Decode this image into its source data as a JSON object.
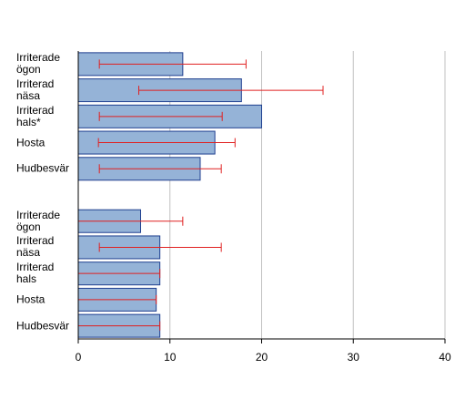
{
  "chart_data": {
    "type": "bar",
    "orientation": "horizontal",
    "categories": [
      "Irriterade ögon",
      "Irriterad näsa",
      "Irriterad hals*",
      "Hosta",
      "Hudbesvär",
      null,
      "Irriterade ögon",
      "Irriterad näsa",
      "Irriterad hals",
      "Hosta",
      "Hudbesvär"
    ],
    "series": [
      {
        "color": "#95b3d7",
        "values": [
          11.4,
          17.8,
          20.0,
          14.9,
          13.3,
          null,
          6.8,
          8.9,
          8.9,
          8.5,
          8.9
        ],
        "lower": [
          2.3,
          6.6,
          2.3,
          2.2,
          2.3,
          null,
          0,
          2.3,
          0,
          0,
          0
        ],
        "upper": [
          18.3,
          26.7,
          15.7,
          17.1,
          15.6,
          null,
          11.4,
          15.6,
          8.9,
          8.5,
          8.9
        ],
        "error_color": "#e02020"
      }
    ],
    "xlim": [
      0,
      40
    ],
    "xticks": [
      0,
      10,
      20,
      30,
      40
    ],
    "grid": true
  }
}
